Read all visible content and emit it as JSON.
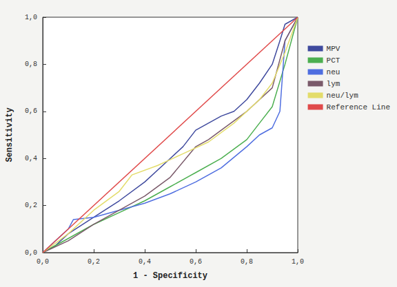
{
  "chart_data": {
    "type": "line",
    "x_label": "1 - Specificity",
    "y_label": "Sensitivity",
    "xlim": [
      0,
      1
    ],
    "ylim": [
      0,
      1
    ],
    "xticks": [
      {
        "value": 0,
        "label": "0,0"
      },
      {
        "value": 0.2,
        "label": "0,2"
      },
      {
        "value": 0.4,
        "label": "0,4"
      },
      {
        "value": 0.6,
        "label": "0,6"
      },
      {
        "value": 0.8,
        "label": "0,8"
      },
      {
        "value": 1,
        "label": "1,0"
      }
    ],
    "yticks": [
      {
        "value": 0,
        "label": "0,0"
      },
      {
        "value": 0.2,
        "label": "0,2"
      },
      {
        "value": 0.4,
        "label": "0,4"
      },
      {
        "value": 0.6,
        "label": "0,6"
      },
      {
        "value": 0.8,
        "label": "0,8"
      },
      {
        "value": 1,
        "label": "1,0"
      }
    ],
    "grid": false,
    "legend": "right",
    "series": [
      {
        "name": "MPV",
        "color": "#3f4a9e",
        "values": [
          [
            0,
            0
          ],
          [
            0.05,
            0.03
          ],
          [
            0.1,
            0.08
          ],
          [
            0.2,
            0.15
          ],
          [
            0.3,
            0.22
          ],
          [
            0.4,
            0.3
          ],
          [
            0.5,
            0.4
          ],
          [
            0.55,
            0.45
          ],
          [
            0.6,
            0.52
          ],
          [
            0.65,
            0.55
          ],
          [
            0.7,
            0.58
          ],
          [
            0.75,
            0.6
          ],
          [
            0.8,
            0.65
          ],
          [
            0.85,
            0.72
          ],
          [
            0.9,
            0.8
          ],
          [
            0.93,
            0.9
          ],
          [
            0.95,
            0.97
          ],
          [
            1,
            1
          ]
        ]
      },
      {
        "name": "PCT",
        "color": "#4caf50",
        "values": [
          [
            0,
            0
          ],
          [
            0.05,
            0.03
          ],
          [
            0.1,
            0.06
          ],
          [
            0.2,
            0.12
          ],
          [
            0.3,
            0.17
          ],
          [
            0.4,
            0.22
          ],
          [
            0.5,
            0.28
          ],
          [
            0.6,
            0.34
          ],
          [
            0.7,
            0.4
          ],
          [
            0.8,
            0.48
          ],
          [
            0.85,
            0.55
          ],
          [
            0.9,
            0.62
          ],
          [
            0.95,
            0.8
          ],
          [
            1,
            1
          ]
        ]
      },
      {
        "name": "neu",
        "color": "#4f6ee0",
        "values": [
          [
            0,
            0
          ],
          [
            0.05,
            0.05
          ],
          [
            0.1,
            0.1
          ],
          [
            0.12,
            0.14
          ],
          [
            0.2,
            0.15
          ],
          [
            0.3,
            0.18
          ],
          [
            0.4,
            0.21
          ],
          [
            0.5,
            0.25
          ],
          [
            0.6,
            0.3
          ],
          [
            0.7,
            0.36
          ],
          [
            0.8,
            0.45
          ],
          [
            0.85,
            0.5
          ],
          [
            0.9,
            0.53
          ],
          [
            0.93,
            0.6
          ],
          [
            0.95,
            0.9
          ],
          [
            1,
            1
          ]
        ]
      },
      {
        "name": "lym",
        "color": "#7a5a6a",
        "values": [
          [
            0,
            0
          ],
          [
            0.1,
            0.05
          ],
          [
            0.2,
            0.12
          ],
          [
            0.3,
            0.18
          ],
          [
            0.4,
            0.24
          ],
          [
            0.5,
            0.32
          ],
          [
            0.6,
            0.45
          ],
          [
            0.65,
            0.48
          ],
          [
            0.7,
            0.52
          ],
          [
            0.8,
            0.6
          ],
          [
            0.85,
            0.65
          ],
          [
            0.9,
            0.7
          ],
          [
            0.95,
            0.9
          ],
          [
            1,
            1
          ]
        ]
      },
      {
        "name": "neu/lym",
        "color": "#e3dc6a",
        "values": [
          [
            0,
            0
          ],
          [
            0.1,
            0.08
          ],
          [
            0.2,
            0.18
          ],
          [
            0.3,
            0.26
          ],
          [
            0.35,
            0.33
          ],
          [
            0.45,
            0.37
          ],
          [
            0.55,
            0.42
          ],
          [
            0.65,
            0.47
          ],
          [
            0.75,
            0.55
          ],
          [
            0.85,
            0.65
          ],
          [
            0.9,
            0.72
          ],
          [
            0.95,
            0.85
          ],
          [
            1,
            1
          ]
        ]
      },
      {
        "name": "Reference Line",
        "color": "#e04a4a",
        "values": [
          [
            0,
            0
          ],
          [
            1,
            1
          ]
        ]
      }
    ]
  }
}
